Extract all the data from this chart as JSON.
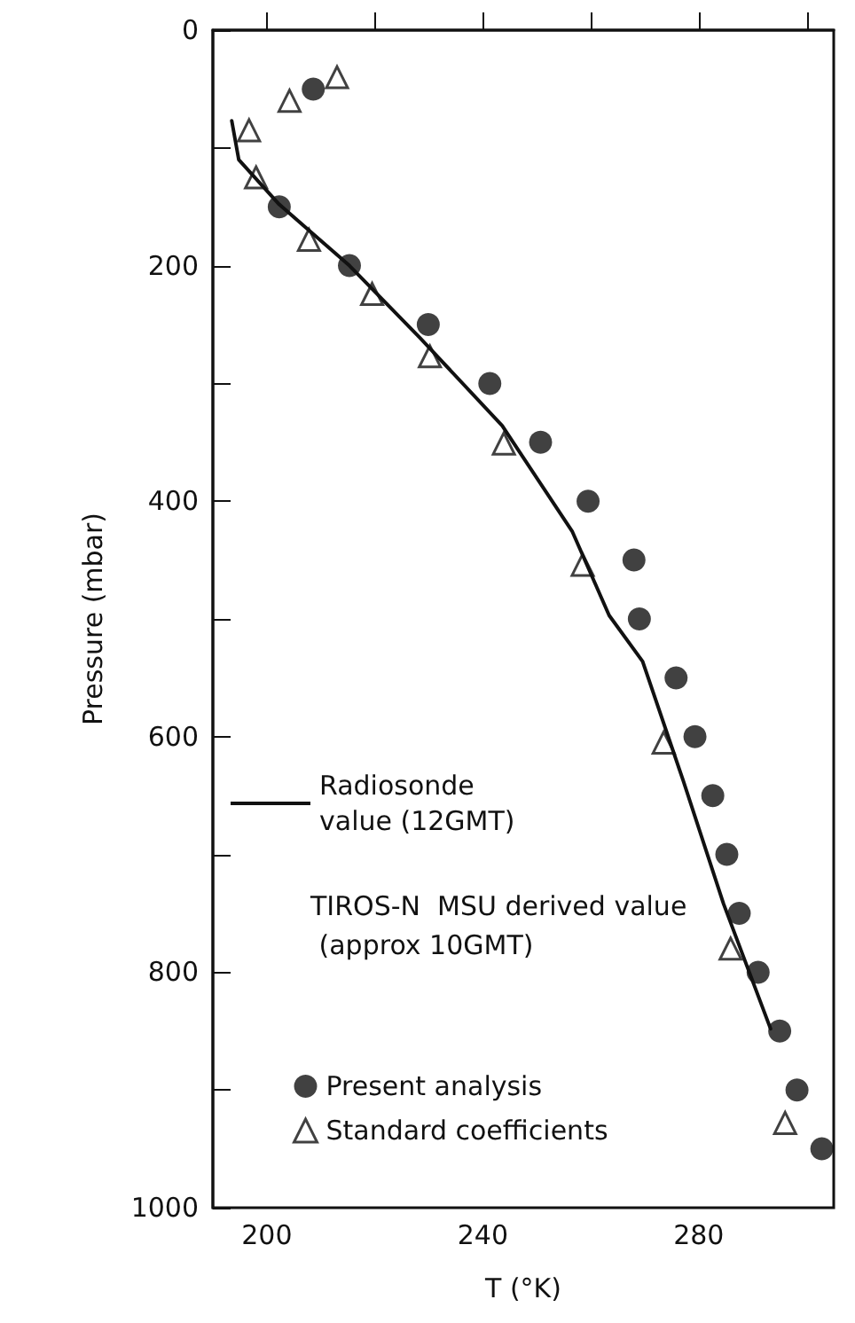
{
  "chart_data": {
    "type": "scatter",
    "xlabel": "T (°K)",
    "ylabel": "Pressure (mbar)",
    "legend_title": "TIROS-N  MSU derived value (approx 10GMT)",
    "xlim": [
      190,
      305
    ],
    "ylim": [
      1000,
      0
    ],
    "xticks": [
      200,
      {
        "value": 220,
        "label": null
      },
      240,
      {
        "value": 260,
        "label": null
      },
      280,
      {
        "value": 300,
        "label": null
      }
    ],
    "yticks": [
      0,
      {
        "value": 100,
        "label": null
      },
      200,
      {
        "value": 300,
        "label": null
      },
      400,
      {
        "value": 500,
        "label": null
      },
      600,
      {
        "value": 700,
        "label": null
      },
      800,
      {
        "value": 900,
        "label": null
      },
      1000
    ],
    "grid": false,
    "legend": "bottom left",
    "series": [
      {
        "name": "Radiosonde value (12GMT)",
        "type": "line",
        "color": "#111111",
        "marker": "none",
        "line_style": "solid",
        "x": [
          193.5,
          194.8,
          202.3,
          215.3,
          228.3,
          243.6,
          256.6,
          263.4,
          269.6,
          277.1,
          284.6,
          293.3
        ],
        "values": [
          77,
          110,
          148,
          200,
          261,
          336,
          426,
          497,
          536,
          637,
          742,
          848
        ]
      },
      {
        "name": "Present analysis",
        "color": "#111111",
        "marker": "circle",
        "x": [
          208.6,
          202.3,
          215.3,
          229.9,
          241.3,
          250.7,
          259.5,
          268,
          269,
          275.8,
          279.3,
          282.6,
          285.2,
          287.5,
          291,
          295,
          298.2,
          302.8
        ],
        "values": [
          50,
          150,
          200,
          250,
          300,
          350,
          400,
          450,
          500,
          550,
          600,
          650,
          700,
          750,
          800,
          850,
          900,
          950
        ]
      },
      {
        "name": "Standard coefficients",
        "color": "#111111",
        "marker": "triangle",
        "x": [
          213,
          204.2,
          196.7,
          198,
          207.8,
          219.5,
          230.2,
          243.9,
          258.5,
          273.5,
          285.9,
          296
        ],
        "values": [
          40,
          60,
          85,
          125,
          178,
          224,
          277,
          351,
          454,
          605,
          780,
          928
        ]
      }
    ]
  }
}
